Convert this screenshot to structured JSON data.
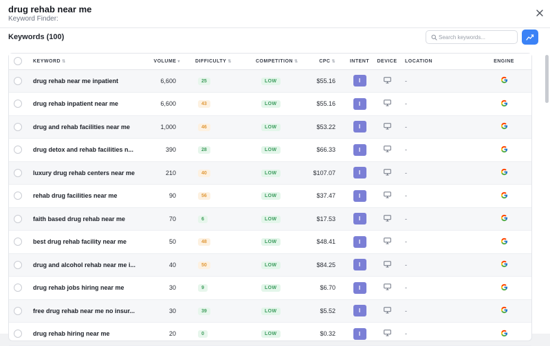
{
  "header": {
    "title": "drug rehab near me",
    "subtitle": "Keyword Finder:"
  },
  "section": {
    "title": "Keywords (100)"
  },
  "search": {
    "placeholder": "Search keywords..."
  },
  "columns": {
    "keyword": "KEYWORD",
    "volume": "VOLUME",
    "difficulty": "DIFFICULTY",
    "competition": "COMPETITION",
    "cpc": "CPC",
    "intent": "INTENT",
    "device": "DEVICE",
    "location": "LOCATION",
    "engine": "ENGINE"
  },
  "colors": {
    "accent": "#3b82f6",
    "intent": "#7b7fd6",
    "low_bg": "#e3f6ea",
    "low_fg": "#3b9b5d",
    "diff_green": "#3f9d5c",
    "diff_orange": "#e0993a"
  },
  "rows": [
    {
      "keyword": "drug rehab near me inpatient",
      "volume": "6,600",
      "difficulty": "25",
      "difficulty_level": "green",
      "competition": "LOW",
      "cpc": "$55.16",
      "intent": "I",
      "location": "-",
      "device_icon": "desktop-icon",
      "engine_icon": "google-icon"
    },
    {
      "keyword": "drug rehab inpatient near me",
      "volume": "6,600",
      "difficulty": "43",
      "difficulty_level": "orange",
      "competition": "LOW",
      "cpc": "$55.16",
      "intent": "I",
      "location": "-",
      "device_icon": "desktop-icon",
      "engine_icon": "google-icon"
    },
    {
      "keyword": "drug and rehab facilities near me",
      "volume": "1,000",
      "difficulty": "46",
      "difficulty_level": "orange",
      "competition": "LOW",
      "cpc": "$53.22",
      "intent": "I",
      "location": "-",
      "device_icon": "desktop-icon",
      "engine_icon": "google-icon"
    },
    {
      "keyword": "drug detox and rehab facilities n...",
      "volume": "390",
      "difficulty": "28",
      "difficulty_level": "green",
      "competition": "LOW",
      "cpc": "$66.33",
      "intent": "I",
      "location": "-",
      "device_icon": "desktop-icon",
      "engine_icon": "google-icon"
    },
    {
      "keyword": "luxury drug rehab centers near me",
      "volume": "210",
      "difficulty": "40",
      "difficulty_level": "orange",
      "competition": "LOW",
      "cpc": "$107.07",
      "intent": "I",
      "location": "-",
      "device_icon": "desktop-icon",
      "engine_icon": "google-icon"
    },
    {
      "keyword": "rehab drug facilities near me",
      "volume": "90",
      "difficulty": "56",
      "difficulty_level": "orange",
      "competition": "LOW",
      "cpc": "$37.47",
      "intent": "I",
      "location": "-",
      "device_icon": "desktop-icon",
      "engine_icon": "google-icon"
    },
    {
      "keyword": "faith based drug rehab near me",
      "volume": "70",
      "difficulty": "6",
      "difficulty_level": "green",
      "competition": "LOW",
      "cpc": "$17.53",
      "intent": "I",
      "location": "-",
      "device_icon": "desktop-icon",
      "engine_icon": "google-icon"
    },
    {
      "keyword": "best drug rehab facility near me",
      "volume": "50",
      "difficulty": "48",
      "difficulty_level": "orange",
      "competition": "LOW",
      "cpc": "$48.41",
      "intent": "I",
      "location": "-",
      "device_icon": "desktop-icon",
      "engine_icon": "google-icon"
    },
    {
      "keyword": "drug and alcohol rehab near me i...",
      "volume": "40",
      "difficulty": "50",
      "difficulty_level": "orange",
      "competition": "LOW",
      "cpc": "$84.25",
      "intent": "I",
      "location": "-",
      "device_icon": "desktop-icon",
      "engine_icon": "google-icon"
    },
    {
      "keyword": "drug rehab jobs hiring near me",
      "volume": "30",
      "difficulty": "9",
      "difficulty_level": "green",
      "competition": "LOW",
      "cpc": "$6.70",
      "intent": "I",
      "location": "-",
      "device_icon": "desktop-icon",
      "engine_icon": "google-icon"
    },
    {
      "keyword": "free drug rehab near me no insur...",
      "volume": "30",
      "difficulty": "39",
      "difficulty_level": "green",
      "competition": "LOW",
      "cpc": "$5.52",
      "intent": "I",
      "location": "-",
      "device_icon": "desktop-icon",
      "engine_icon": "google-icon"
    },
    {
      "keyword": "drug rehab hiring near me",
      "volume": "20",
      "difficulty": "0",
      "difficulty_level": "green",
      "competition": "LOW",
      "cpc": "$0.32",
      "intent": "I",
      "location": "-",
      "device_icon": "desktop-icon",
      "engine_icon": "google-icon"
    }
  ]
}
